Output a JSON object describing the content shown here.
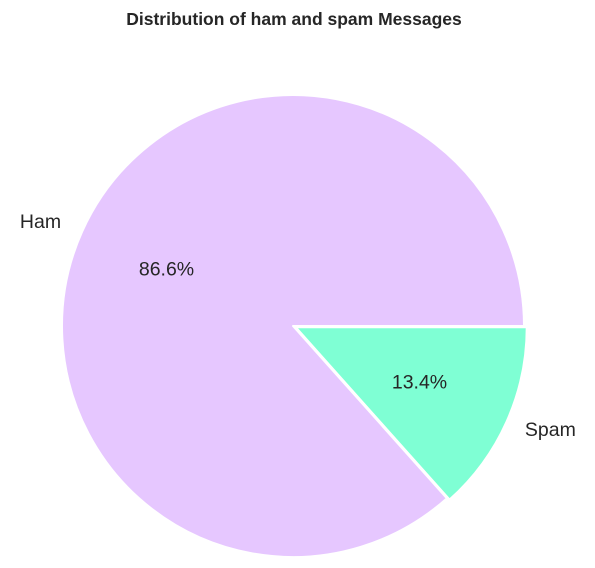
{
  "chart_data": {
    "type": "pie",
    "title": "Distribution of ham and spam Messages",
    "slices": [
      {
        "label": "Ham",
        "value": 86.6,
        "pct_label": "86.6%",
        "color": "#E6C7FF"
      },
      {
        "label": "Spam",
        "value": 13.4,
        "pct_label": "13.4%",
        "color": "#7FFFD4"
      }
    ],
    "start_angle_deg": 0,
    "direction": "counterclockwise",
    "exploded": "Spam",
    "wedge_edge_color": "#ffffff",
    "legend": "none"
  }
}
